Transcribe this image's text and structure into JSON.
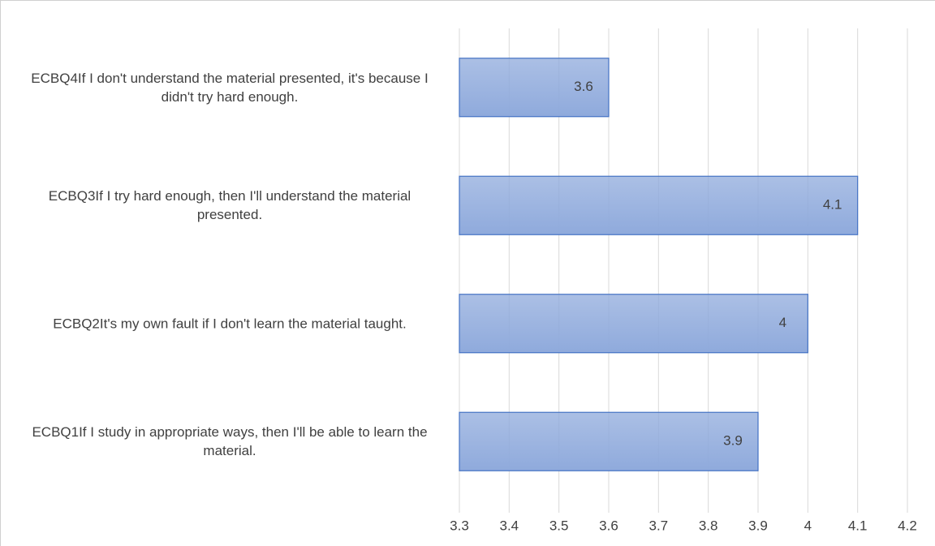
{
  "chart_data": {
    "type": "bar",
    "orientation": "horizontal",
    "categories": [
      "ECBQ4If I don't understand the material presented, it's because I didn't try hard enough.",
      "ECBQ3If I try hard enough, then I'll understand the material presented.",
      "ECBQ2It's my own fault if I don't learn the material taught.",
      "ECBQ1If I study in appropriate ways, then I'll be able to learn the material."
    ],
    "values": [
      3.6,
      4.1,
      4,
      3.9
    ],
    "color": "#8faadc",
    "edge_color": "#4472c4",
    "xlim": [
      3.3,
      4.2
    ],
    "xticks": [
      3.3,
      3.4,
      3.5,
      3.6,
      3.7,
      3.8,
      3.9,
      4,
      4.1,
      4.2
    ],
    "grid": true
  }
}
